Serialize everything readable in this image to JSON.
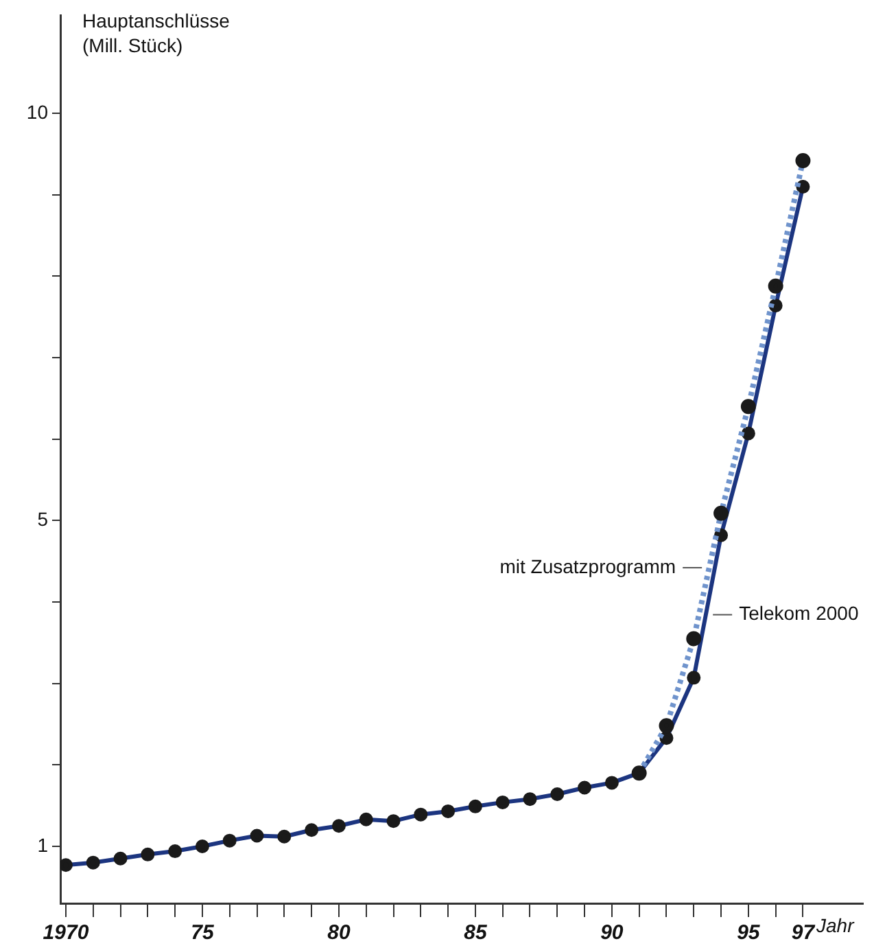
{
  "chart_data": {
    "type": "line",
    "ylabel": "Hauptanschlüsse (Mill. Stück)",
    "xlabel": "Jahr",
    "x": [
      1970,
      1971,
      1972,
      1973,
      1974,
      1975,
      1976,
      1977,
      1978,
      1979,
      1980,
      1981,
      1982,
      1983,
      1984,
      1985,
      1986,
      1987,
      1988,
      1989,
      1990,
      1991,
      1992,
      1993,
      1994,
      1995,
      1996,
      1997
    ],
    "series": [
      {
        "name": "mit Zusatzprogramm",
        "color": "#6f93cc",
        "line_style": "dotted",
        "values": [
          null,
          null,
          null,
          null,
          null,
          null,
          null,
          null,
          null,
          null,
          null,
          null,
          null,
          null,
          null,
          null,
          null,
          null,
          null,
          null,
          null,
          1.9,
          2.48,
          3.55,
          5.09,
          6.4,
          7.88,
          9.42
        ]
      },
      {
        "name": "Telekom 2000",
        "color": "#1c3580",
        "line_style": "solid",
        "values": [
          0.77,
          0.8,
          0.85,
          0.9,
          0.94,
          1.0,
          1.07,
          1.13,
          1.12,
          1.2,
          1.25,
          1.33,
          1.31,
          1.39,
          1.43,
          1.49,
          1.54,
          1.58,
          1.64,
          1.72,
          1.78,
          1.9,
          2.33,
          3.07,
          4.82,
          6.07,
          7.64,
          9.1
        ]
      }
    ],
    "marker": "circle",
    "grid": false,
    "legend": false,
    "xlim": [
      1969.8,
      1999.2
    ],
    "xticks": [
      {
        "value": 1970,
        "label": "1970"
      },
      {
        "value": 1971,
        "label": null
      },
      {
        "value": 1972,
        "label": null
      },
      {
        "value": 1973,
        "label": null
      },
      {
        "value": 1974,
        "label": null
      },
      {
        "value": 1975,
        "label": "75"
      },
      {
        "value": 1976,
        "label": null
      },
      {
        "value": 1977,
        "label": null
      },
      {
        "value": 1978,
        "label": null
      },
      {
        "value": 1979,
        "label": null
      },
      {
        "value": 1980,
        "label": "80"
      },
      {
        "value": 1981,
        "label": null
      },
      {
        "value": 1982,
        "label": null
      },
      {
        "value": 1983,
        "label": null
      },
      {
        "value": 1984,
        "label": null
      },
      {
        "value": 1985,
        "label": "85"
      },
      {
        "value": 1986,
        "label": null
      },
      {
        "value": 1987,
        "label": null
      },
      {
        "value": 1988,
        "label": null
      },
      {
        "value": 1989,
        "label": null
      },
      {
        "value": 1990,
        "label": "90"
      },
      {
        "value": 1991,
        "label": null
      },
      {
        "value": 1992,
        "label": null
      },
      {
        "value": 1993,
        "label": null
      },
      {
        "value": 1994,
        "label": null
      },
      {
        "value": 1995,
        "label": "95"
      },
      {
        "value": 1996,
        "label": null
      },
      {
        "value": 1997,
        "label": "97"
      }
    ],
    "ylim": [
      0.3,
      11.2
    ],
    "yticks": [
      1,
      {
        "value": 2,
        "label": null
      },
      {
        "value": 3,
        "label": null
      },
      {
        "value": 4,
        "label": null
      },
      5,
      {
        "value": 6,
        "label": null
      },
      {
        "value": 7,
        "label": null
      },
      {
        "value": 8,
        "label": null
      },
      {
        "value": 9,
        "label": null
      },
      10
    ]
  }
}
